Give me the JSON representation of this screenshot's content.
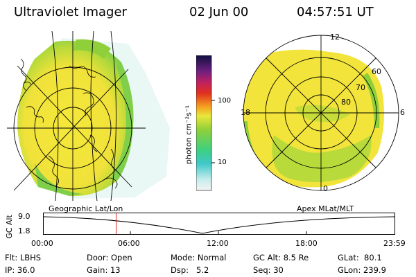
{
  "header": {
    "instrument": "Ultraviolet Imager",
    "date": "02 Jun 00",
    "time": "04:57:51 UT"
  },
  "left_panel": {
    "label": "Geographic Lat/Lon"
  },
  "right_panel": {
    "label": "Apex MLat/MLT",
    "mlt_labels": {
      "top": "12",
      "left": "18",
      "right": "6",
      "bottom": "0"
    },
    "lat_labels": [
      "60",
      "70",
      "80"
    ]
  },
  "colorbar": {
    "unit_label": "photon cm⁻²s⁻¹",
    "ticks": [
      "100",
      "10"
    ]
  },
  "altitude_plot": {
    "ylabel": "GC Alt",
    "yticks": [
      "9.0",
      "1.8"
    ],
    "xticks": [
      "00:00",
      "06:00",
      "12:00",
      "18:00",
      "23:59"
    ],
    "current_time_fraction": 0.2068
  },
  "info": {
    "row1": {
      "flt": "Flt: LBHS",
      "door": "Door: Open",
      "mode": "Mode: Normal",
      "gcalt": "GC Alt: 8.5 Re",
      "glat": "GLat:  80.1"
    },
    "row2": {
      "ip": "IP: 36.0",
      "gain": "Gain: 13",
      "dsp": "Dsp:   5.2",
      "seq": "Seq: 30",
      "glon": "GLon: 239.9"
    }
  },
  "colors": {
    "yellow": "#f2e43a",
    "green": "#8fd03a",
    "cyan": "#3ec8c8",
    "red_marker": "#e02020"
  }
}
